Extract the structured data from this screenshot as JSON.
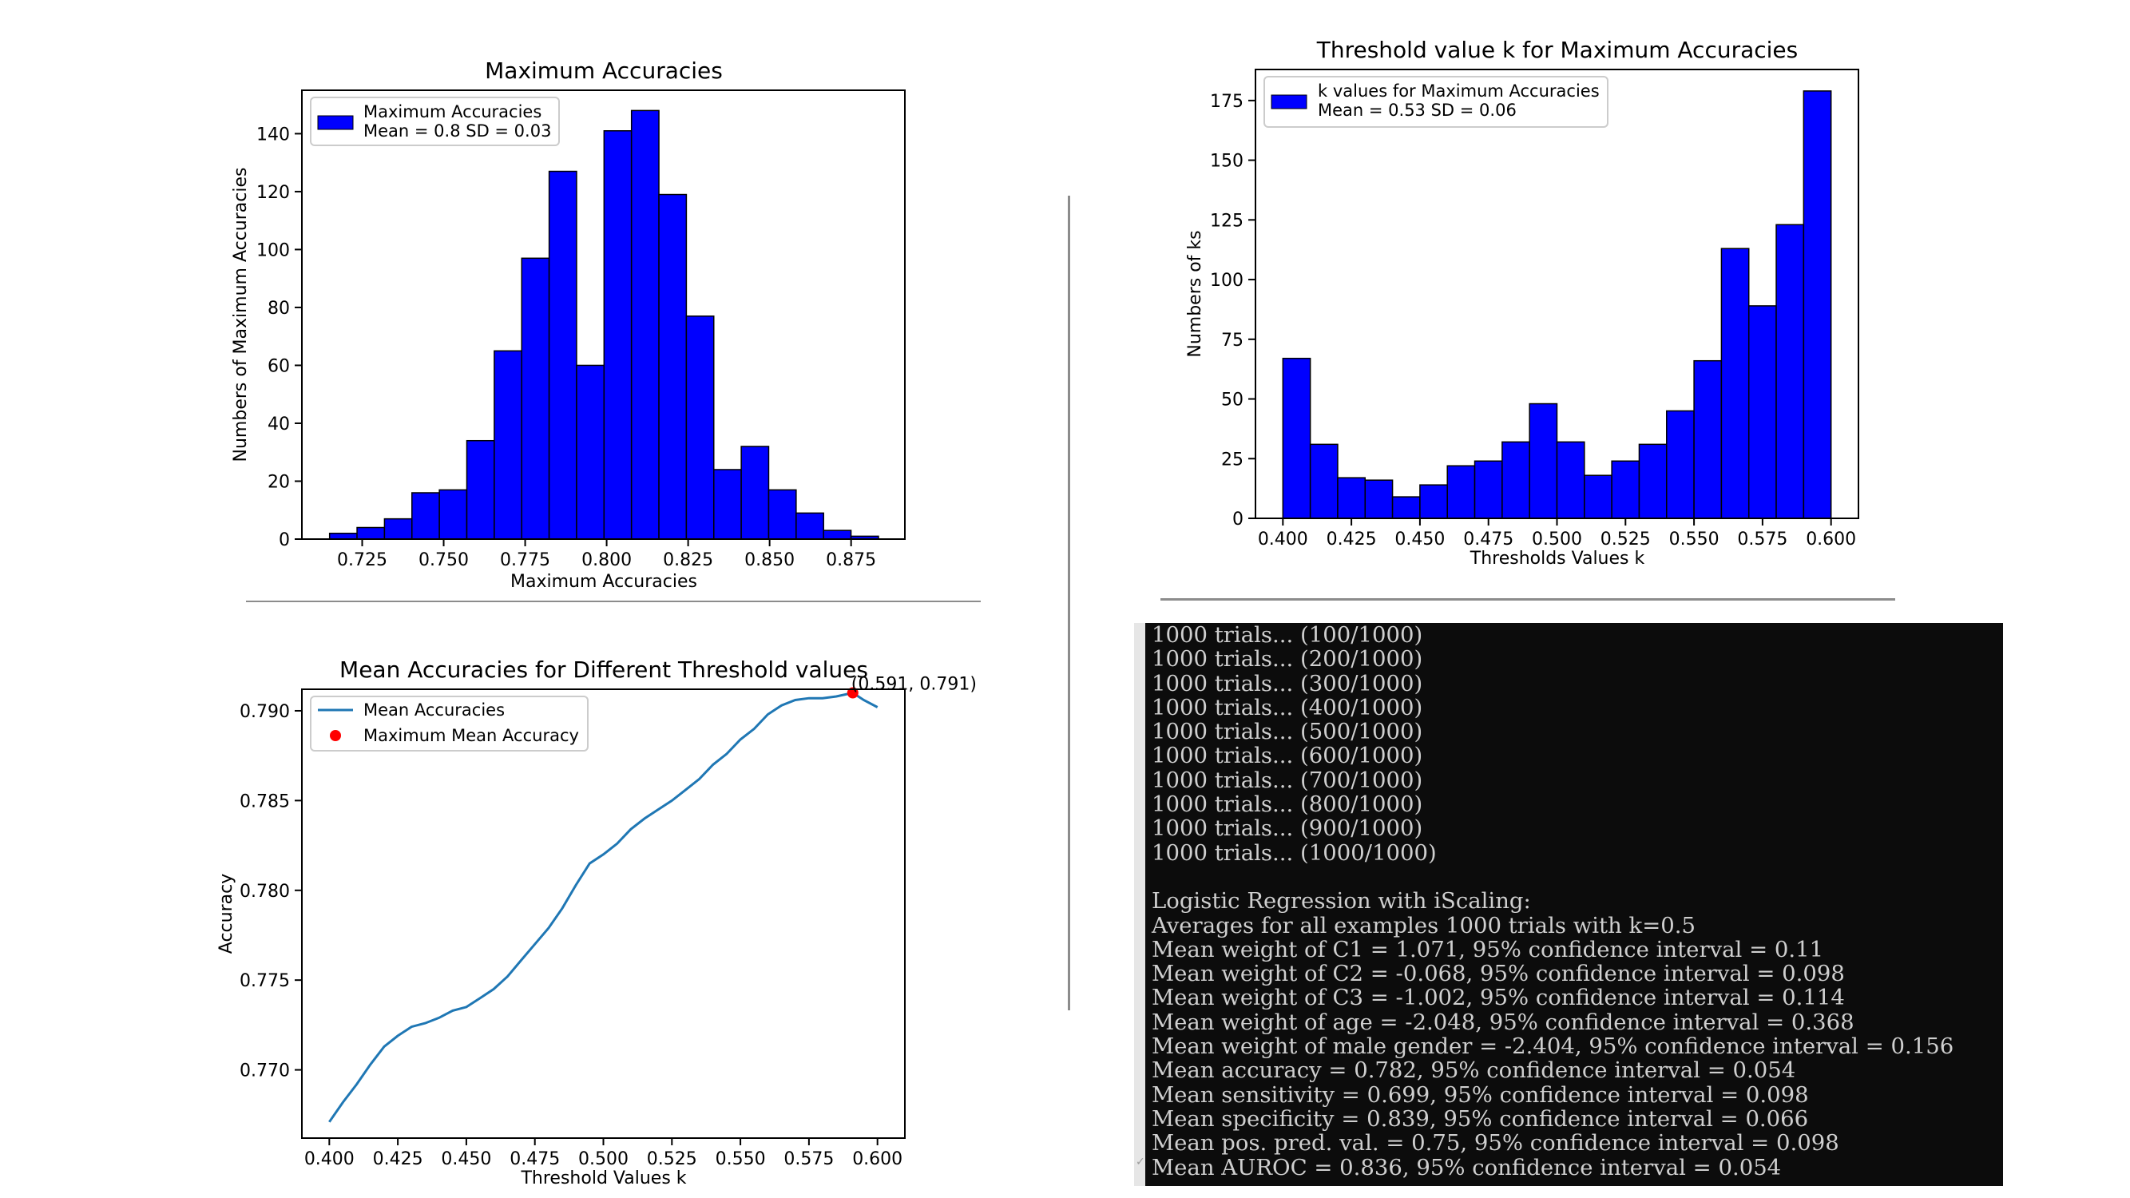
{
  "chart_data": [
    {
      "type": "bar",
      "title": "Maximum Accuracies",
      "xlabel": "Maximum Accuracies",
      "ylabel": "Numbers of Maximum Accuracies",
      "legend": {
        "label": "Maximum Accuracies",
        "stats": "Mean = 0.8 SD = 0.03",
        "placement": "top-left"
      },
      "bar_color": "#0000ff",
      "xlim": [
        0.7065,
        0.8915
      ],
      "ylim": [
        0,
        155
      ],
      "xticks": [
        "0.725",
        "0.750",
        "0.775",
        "0.800",
        "0.825",
        "0.850",
        "0.875"
      ],
      "xtick_values": [
        0.725,
        0.75,
        0.775,
        0.8,
        0.825,
        0.85,
        0.875
      ],
      "yticks": [
        "0",
        "20",
        "40",
        "60",
        "80",
        "100",
        "120",
        "140"
      ],
      "ytick_values": [
        0,
        20,
        40,
        60,
        80,
        100,
        120,
        140
      ],
      "bin_start": 0.715,
      "bin_width": 0.00842,
      "values": [
        2,
        4,
        7,
        16,
        17,
        34,
        65,
        97,
        127,
        60,
        141,
        148,
        119,
        77,
        24,
        32,
        17,
        9,
        3,
        1
      ]
    },
    {
      "type": "bar",
      "title": "Threshold value k for Maximum Accuracies",
      "xlabel": "Thresholds Values k",
      "ylabel": "Numbers of ks",
      "legend": {
        "label": "k values for Maximum Accuracies",
        "stats": "Mean = 0.53 SD = 0.06",
        "placement": "top-left"
      },
      "bar_color": "#0000ff",
      "xlim": [
        0.39,
        0.61
      ],
      "ylim": [
        0,
        188
      ],
      "xticks": [
        "0.400",
        "0.425",
        "0.450",
        "0.475",
        "0.500",
        "0.525",
        "0.550",
        "0.575",
        "0.600"
      ],
      "xtick_values": [
        0.4,
        0.425,
        0.45,
        0.475,
        0.5,
        0.525,
        0.55,
        0.575,
        0.6
      ],
      "yticks": [
        "0",
        "25",
        "50",
        "75",
        "100",
        "125",
        "150",
        "175"
      ],
      "ytick_values": [
        0,
        25,
        50,
        75,
        100,
        125,
        150,
        175
      ],
      "bin_start": 0.4,
      "bin_width": 0.01,
      "values": [
        67,
        31,
        17,
        16,
        9,
        14,
        22,
        24,
        32,
        48,
        32,
        18,
        24,
        31,
        45,
        66,
        113,
        89,
        123,
        179
      ]
    },
    {
      "type": "line",
      "title": "Mean Accuracies for Different Threshold values",
      "xlabel": "Threshold Values k",
      "ylabel": "Accuracy",
      "xlim": [
        0.39,
        0.61
      ],
      "ylim": [
        0.7662,
        0.7912
      ],
      "xticks": [
        "0.400",
        "0.425",
        "0.450",
        "0.475",
        "0.500",
        "0.525",
        "0.550",
        "0.575",
        "0.600"
      ],
      "xtick_values": [
        0.4,
        0.425,
        0.45,
        0.475,
        0.5,
        0.525,
        0.55,
        0.575,
        0.6
      ],
      "yticks": [
        "0.770",
        "0.775",
        "0.780",
        "0.785",
        "0.790"
      ],
      "ytick_values": [
        0.77,
        0.775,
        0.78,
        0.785,
        0.79
      ],
      "legend": {
        "line_label": "Mean Accuracies",
        "point_label": "Maximum Mean Accuracy",
        "placement": "top-left"
      },
      "line_color": "#1f77b4",
      "point_color": "#ff0000",
      "series": [
        {
          "name": "Mean Accuracies",
          "x": [
            0.4,
            0.405,
            0.41,
            0.415,
            0.42,
            0.425,
            0.43,
            0.435,
            0.44,
            0.445,
            0.45,
            0.455,
            0.46,
            0.465,
            0.47,
            0.475,
            0.48,
            0.485,
            0.49,
            0.495,
            0.5,
            0.505,
            0.51,
            0.515,
            0.52,
            0.525,
            0.53,
            0.535,
            0.54,
            0.545,
            0.55,
            0.555,
            0.56,
            0.565,
            0.57,
            0.575,
            0.58,
            0.585,
            0.591,
            0.595,
            0.6
          ],
          "y": [
            0.7671,
            0.7682,
            0.7692,
            0.7703,
            0.7713,
            0.7719,
            0.7724,
            0.7726,
            0.7729,
            0.7733,
            0.7735,
            0.774,
            0.7745,
            0.7752,
            0.7761,
            0.777,
            0.7779,
            0.779,
            0.7803,
            0.7815,
            0.782,
            0.7826,
            0.7834,
            0.784,
            0.7845,
            0.785,
            0.7856,
            0.7862,
            0.787,
            0.7876,
            0.7884,
            0.789,
            0.7898,
            0.7903,
            0.7906,
            0.7907,
            0.7907,
            0.7908,
            0.791,
            0.7906,
            0.7902
          ]
        }
      ],
      "max_point": {
        "x": 0.591,
        "y": 0.791,
        "label": "(0.591, 0.791)"
      }
    }
  ],
  "console": {
    "lines": [
      "1000 trials... (100/1000)",
      "1000 trials... (200/1000)",
      "1000 trials... (300/1000)",
      "1000 trials... (400/1000)",
      "1000 trials... (500/1000)",
      "1000 trials... (600/1000)",
      "1000 trials... (700/1000)",
      "1000 trials... (800/1000)",
      "1000 trials... (900/1000)",
      "1000 trials... (1000/1000)",
      "",
      "Logistic Regression with iScaling:",
      "Averages for all examples 1000 trials with k=0.5",
      "Mean weight of C1 = 1.071, 95% confidence interval = 0.11",
      "Mean weight of C2 = -0.068, 95% confidence interval = 0.098",
      "Mean weight of C3 = -1.002, 95% confidence interval = 0.114",
      "Mean weight of age = -2.048, 95% confidence interval = 0.368",
      "Mean weight of male gender = -2.404, 95% confidence interval = 0.156",
      "Mean accuracy = 0.782, 95% confidence interval = 0.054",
      "Mean sensitivity = 0.699, 95% confidence interval = 0.098",
      "Mean specificity = 0.839, 95% confidence interval = 0.066",
      "Mean pos. pred. val. = 0.75, 95% confidence interval = 0.098",
      "Mean AUROC = 0.836, 95% confidence interval = 0.054"
    ],
    "checkmark": "✓"
  }
}
